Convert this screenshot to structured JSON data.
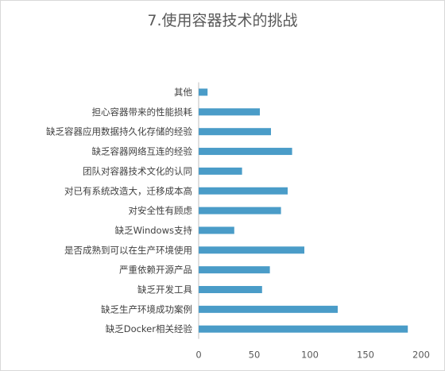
{
  "chart_data": {
    "type": "bar",
    "orientation": "horizontal",
    "title": "7.使用容器技术的挑战",
    "categories": [
      "其他",
      "担心容器带来的性能损耗",
      "缺乏容器应用数据持久化存储的经验",
      "缺乏容器网络互连的经验",
      "团队对容器技术文化的认同",
      "对已有系统改造大，迁移成本高",
      "对安全性有顾虑",
      "缺乏Windows支持",
      "是否成熟到可以在生产环境使用",
      "严重依赖开源产品",
      "缺乏开发工具",
      "缺乏生产环境成功案例",
      "缺乏Docker相关经验"
    ],
    "values": [
      8,
      55,
      65,
      84,
      39,
      80,
      74,
      32,
      95,
      64,
      57,
      125,
      188
    ],
    "xlim": [
      0,
      200
    ],
    "xticks": [
      0,
      50,
      100,
      150,
      200
    ],
    "bar_color": "#4a9cc8",
    "grid": false,
    "legend": "none"
  }
}
